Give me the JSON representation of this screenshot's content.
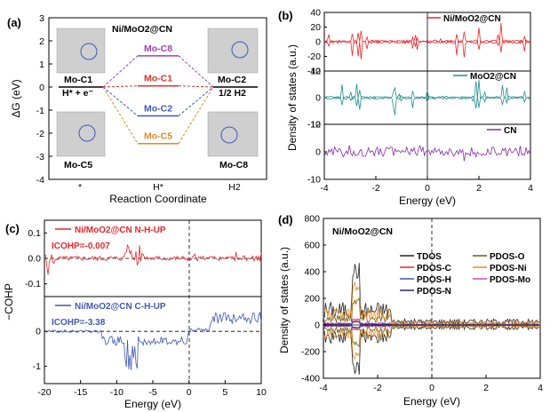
{
  "chart_data": [
    {
      "panel": "(a)",
      "type": "line",
      "title": "Ni/MoO2@CN",
      "xlabel": "Reaction Coordinate",
      "ylabel": "ΔG (eV)",
      "ylim": [
        -4,
        3
      ],
      "yticks": [
        "3",
        "2",
        "1",
        "0",
        "-1",
        "-2",
        "-3",
        "-4"
      ],
      "xticks": [
        "*",
        "H*",
        "H2"
      ],
      "series": [
        {
          "name": "Mo-C8",
          "color": "#a13fb5",
          "values": [
            0,
            1.35,
            0
          ]
        },
        {
          "name": "Mo-C1",
          "color": "#e0322b",
          "values": [
            0,
            0.05,
            0
          ]
        },
        {
          "name": "Mo-C2",
          "color": "#3f58b5",
          "values": [
            0,
            -1.25,
            0
          ]
        },
        {
          "name": "Mo-C5",
          "color": "#e08a24",
          "values": [
            0,
            -2.45,
            0
          ]
        }
      ],
      "annotations": [
        "Mo-C1",
        "H* + e⁻",
        "Mo-C2",
        "1/2 H2",
        "Mo-C5",
        "Mo-C8"
      ]
    },
    {
      "panel": "(b)",
      "type": "line",
      "xlabel": "Energy (eV)",
      "ylabel": "Density of states (a.u.)",
      "xlim": [
        -4,
        4
      ],
      "xticks": [
        "-4",
        "-2",
        "0",
        "2",
        "4"
      ],
      "subplots": [
        {
          "name": "Ni/MoO2@CN",
          "color": "#e8262b",
          "ylim": [
            -40,
            40
          ],
          "yticks": [
            "40",
            "20",
            "0",
            "-20",
            "-40"
          ]
        },
        {
          "name": "MoO2@CN",
          "color": "#1f8f8a",
          "ylim": [
            -12,
            12
          ],
          "yticks": [
            "12",
            "0",
            "-12"
          ]
        },
        {
          "name": "CN",
          "color": "#8b2aa8",
          "ylim": [
            -10,
            10
          ],
          "yticks": [
            "10",
            "0",
            "-10"
          ]
        }
      ]
    },
    {
      "panel": "(c)",
      "type": "line",
      "xlabel": "Energy (eV)",
      "ylabel": "−COHP",
      "xlim": [
        -20,
        10
      ],
      "xticks": [
        "-20",
        "-15",
        "-10",
        "-5",
        "0",
        "5",
        "10"
      ],
      "subplots": [
        {
          "name": "Ni/MoO2@CN N-H-UP",
          "color": "#e8262b",
          "icohp": "ICOHP=-0.007",
          "ylim": [
            -0.15,
            0.15
          ],
          "yticks": [
            "0.1",
            "0.0",
            "-0.1"
          ]
        },
        {
          "name": "Ni/MoO2@CN C-H-UP",
          "color": "#3f58b5",
          "icohp": "ICOHP=-3.38",
          "ylim": [
            -1.5,
            1
          ],
          "yticks": [
            "0",
            "-1"
          ]
        }
      ]
    },
    {
      "panel": "(d)",
      "type": "line",
      "title": "Ni/MoO2@CN",
      "xlabel": "Energy (eV)",
      "ylabel": "Density of states (a.u.)",
      "xlim": [
        -4,
        4
      ],
      "ylim": [
        -400,
        800
      ],
      "xticks": [
        "-4",
        "-2",
        "0",
        "2",
        "4"
      ],
      "yticks": [
        "800",
        "600",
        "400",
        "200",
        "0",
        "-200",
        "-400"
      ],
      "legend": [
        {
          "name": "TDOS",
          "color": "#222222"
        },
        {
          "name": "PDOS-O",
          "color": "#6b5a10"
        },
        {
          "name": "PDOS-C",
          "color": "#e8262b"
        },
        {
          "name": "PDOS-Ni",
          "color": "#e8912b"
        },
        {
          "name": "PDOS-H",
          "color": "#3f58b5"
        },
        {
          "name": "PDOS-Mo",
          "color": "#c04fbf"
        },
        {
          "name": "PDOS-N",
          "color": "#26256b"
        }
      ]
    }
  ]
}
